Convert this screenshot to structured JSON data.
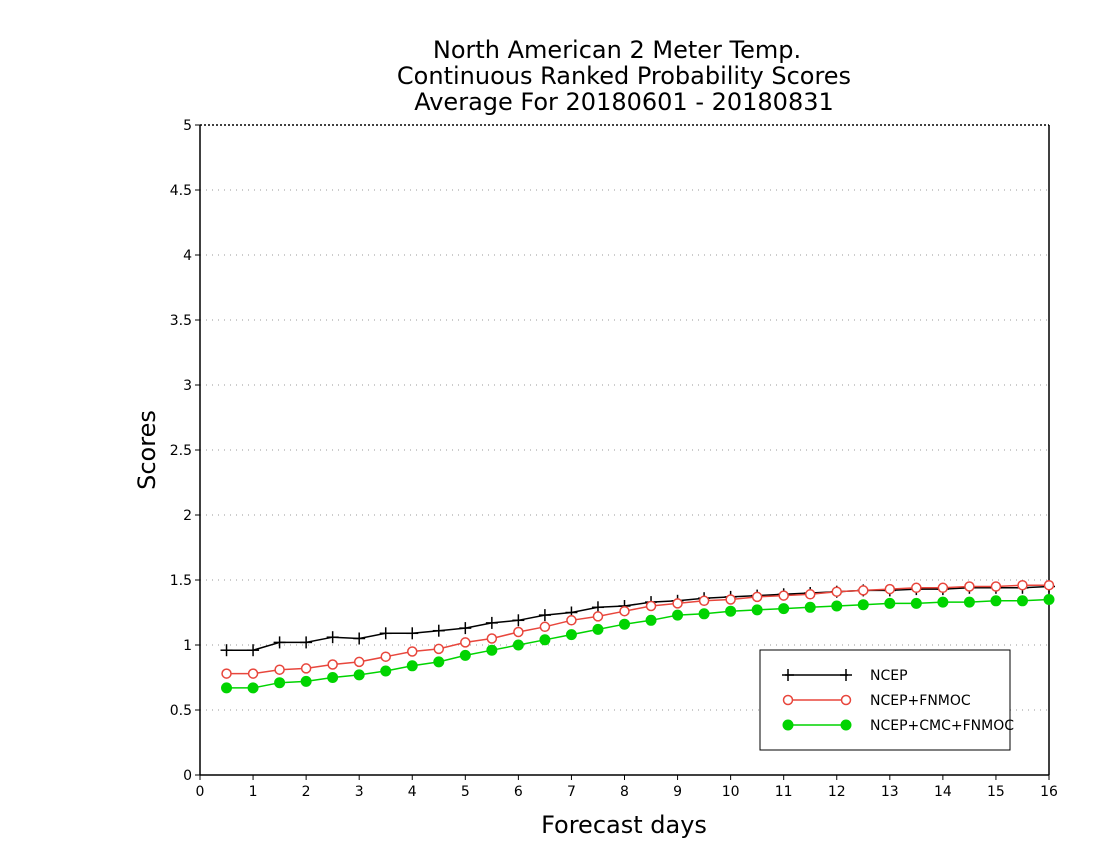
{
  "chart_data": {
    "type": "line",
    "title_lines": [
      "North American 2 Meter Temp.",
      "Continuous Ranked Probability Scores",
      "Average For 20180601 - 20180831"
    ],
    "xlabel": "Forecast days",
    "ylabel": "Scores",
    "xlim": [
      0,
      16
    ],
    "ylim": [
      0,
      5
    ],
    "x_ticks": [
      "0",
      "1",
      "2",
      "3",
      "4",
      "5",
      "6",
      "7",
      "8",
      "9",
      "10",
      "11",
      "12",
      "13",
      "14",
      "15",
      "16"
    ],
    "y_ticks": [
      "0",
      "0.5",
      "1",
      "1.5",
      "2",
      "2.5",
      "3",
      "3.5",
      "4",
      "4.5",
      "5"
    ],
    "grid": "horizontal dotted",
    "legend_position": "bottom-right",
    "x": [
      0.5,
      1,
      1.5,
      2,
      2.5,
      3,
      3.5,
      4,
      4.5,
      5,
      5.5,
      6,
      6.5,
      7,
      7.5,
      8,
      8.5,
      9,
      9.5,
      10,
      10.5,
      11,
      11.5,
      12,
      12.5,
      13,
      13.5,
      14,
      14.5,
      15,
      15.5,
      16
    ],
    "series": [
      {
        "name": "NCEP",
        "color": "#000000",
        "marker": "plus",
        "values": [
          0.96,
          0.96,
          1.02,
          1.02,
          1.06,
          1.05,
          1.09,
          1.09,
          1.11,
          1.13,
          1.17,
          1.19,
          1.23,
          1.25,
          1.29,
          1.3,
          1.33,
          1.34,
          1.36,
          1.37,
          1.38,
          1.39,
          1.4,
          1.41,
          1.42,
          1.42,
          1.43,
          1.43,
          1.44,
          1.44,
          1.44,
          1.45
        ]
      },
      {
        "name": "NCEP+FNMOC",
        "color": "#e8463c",
        "marker": "open-circle",
        "values": [
          0.78,
          0.78,
          0.81,
          0.82,
          0.85,
          0.87,
          0.91,
          0.95,
          0.97,
          1.02,
          1.05,
          1.1,
          1.14,
          1.19,
          1.22,
          1.26,
          1.3,
          1.32,
          1.34,
          1.35,
          1.37,
          1.38,
          1.39,
          1.41,
          1.42,
          1.43,
          1.44,
          1.44,
          1.45,
          1.45,
          1.46,
          1.46
        ]
      },
      {
        "name": "NCEP+CMC+FNMOC",
        "color": "#00d400",
        "marker": "filled-circle",
        "values": [
          0.67,
          0.67,
          0.71,
          0.72,
          0.75,
          0.77,
          0.8,
          0.84,
          0.87,
          0.92,
          0.96,
          1.0,
          1.04,
          1.08,
          1.12,
          1.16,
          1.19,
          1.23,
          1.24,
          1.26,
          1.27,
          1.28,
          1.29,
          1.3,
          1.31,
          1.32,
          1.32,
          1.33,
          1.33,
          1.34,
          1.34,
          1.35
        ]
      }
    ]
  }
}
